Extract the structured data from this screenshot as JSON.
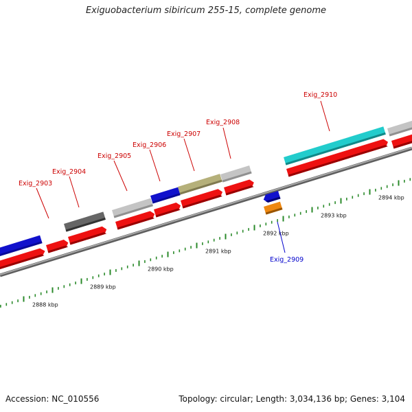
{
  "title": "Exiguobacterium sibiricum 255-15, complete genome",
  "accession": "Accession: NC_010556",
  "genome_info": "Topology: circular; Length: 3,034,136 bp; Genes: 3,104",
  "colors": {
    "backbone": "#8a8a8a",
    "cds": "#ee1111",
    "tick": "#2a8a2a",
    "label_forward": "#cc0000",
    "label_reverse": "#0000cc"
  },
  "scale_labels": [
    {
      "kbp": 2888,
      "text": "2888 kbp"
    },
    {
      "kbp": 2889,
      "text": "2889 kbp"
    },
    {
      "kbp": 2890,
      "text": "2890 kbp"
    },
    {
      "kbp": 2891,
      "text": "2891 kbp"
    },
    {
      "kbp": 2892,
      "text": "2892 kbp"
    },
    {
      "kbp": 2893,
      "text": "2893 kbp"
    },
    {
      "kbp": 2894,
      "text": "2894 kbp"
    }
  ],
  "gene_labels": [
    {
      "name": "Exig_2903",
      "strand": "+"
    },
    {
      "name": "Exig_2904",
      "strand": "+"
    },
    {
      "name": "Exig_2905",
      "strand": "+"
    },
    {
      "name": "Exig_2906",
      "strand": "+"
    },
    {
      "name": "Exig_2907",
      "strand": "+"
    },
    {
      "name": "Exig_2908",
      "strand": "+"
    },
    {
      "name": "Exig_2909",
      "strand": "-"
    },
    {
      "name": "Exig_2910",
      "strand": "+"
    }
  ]
}
